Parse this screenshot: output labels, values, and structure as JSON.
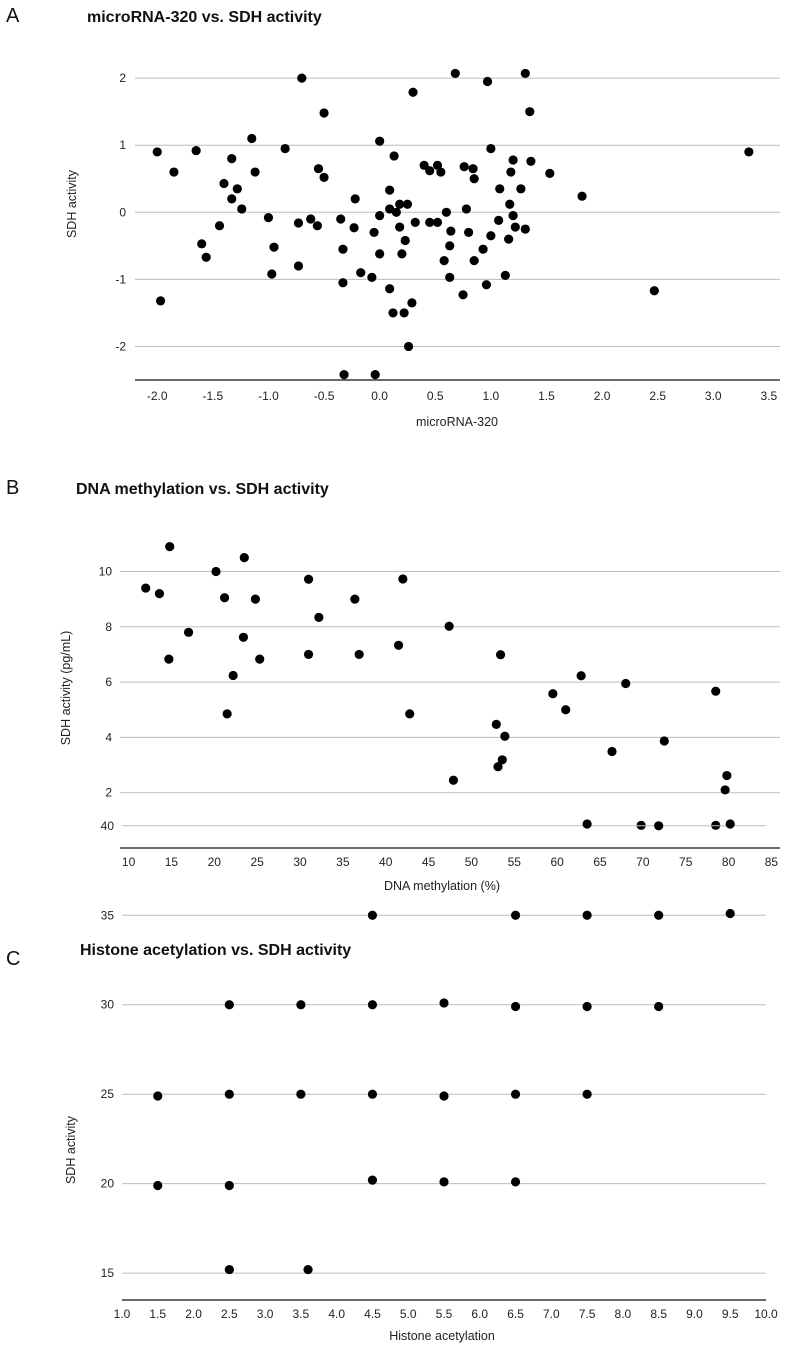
{
  "chart_data": [
    {
      "panel": "A",
      "type": "scatter",
      "title": "microRNA-320 vs. SDH activity",
      "xlabel": "microRNA-320",
      "ylabel": "SDH activity",
      "xlim": [
        -2.2,
        3.6
      ],
      "ylim": [
        -2.5,
        2.3
      ],
      "xticks": [
        "-2.0",
        "-1.5",
        "-1.0",
        "-0.5",
        "0.0",
        "0.5",
        "1.0",
        "1.5",
        "2.0",
        "2.5",
        "3.0",
        "3.5"
      ],
      "yticks": [
        "-2",
        "-1",
        "0",
        "1",
        "2"
      ],
      "grid": "horizontal",
      "points": [
        [
          -0.7,
          2.0
        ],
        [
          0.68,
          2.07
        ],
        [
          0.97,
          1.95
        ],
        [
          1.31,
          2.07
        ],
        [
          0.3,
          1.79
        ],
        [
          -0.5,
          1.48
        ],
        [
          1.35,
          1.5
        ],
        [
          -2.0,
          0.9
        ],
        [
          -1.65,
          0.92
        ],
        [
          -1.85,
          0.6
        ],
        [
          -1.33,
          0.8
        ],
        [
          -1.15,
          1.1
        ],
        [
          -1.12,
          0.6
        ],
        [
          -0.85,
          0.95
        ],
        [
          0.0,
          1.06
        ],
        [
          0.13,
          0.84
        ],
        [
          1.0,
          0.95
        ],
        [
          1.2,
          0.78
        ],
        [
          1.36,
          0.76
        ],
        [
          1.53,
          0.58
        ],
        [
          3.32,
          0.9
        ],
        [
          -0.55,
          0.65
        ],
        [
          -0.5,
          0.52
        ],
        [
          -1.4,
          0.43
        ],
        [
          -1.28,
          0.35
        ],
        [
          -1.33,
          0.2
        ],
        [
          -1.24,
          0.05
        ],
        [
          -0.22,
          0.2
        ],
        [
          0.09,
          0.33
        ],
        [
          0.09,
          0.05
        ],
        [
          0.15,
          0.0
        ],
        [
          0.18,
          0.12
        ],
        [
          0.25,
          0.12
        ],
        [
          0.4,
          0.7
        ],
        [
          0.45,
          0.62
        ],
        [
          0.52,
          0.7
        ],
        [
          0.55,
          0.6
        ],
        [
          0.76,
          0.68
        ],
        [
          0.84,
          0.65
        ],
        [
          0.85,
          0.5
        ],
        [
          1.08,
          0.35
        ],
        [
          1.18,
          0.6
        ],
        [
          1.27,
          0.35
        ],
        [
          1.82,
          0.24
        ],
        [
          1.17,
          0.12
        ],
        [
          0.78,
          0.05
        ],
        [
          -1.44,
          -0.2
        ],
        [
          -1.0,
          -0.08
        ],
        [
          -0.73,
          -0.16
        ],
        [
          -0.62,
          -0.1
        ],
        [
          -0.56,
          -0.2
        ],
        [
          -0.35,
          -0.1
        ],
        [
          -0.23,
          -0.23
        ],
        [
          -0.05,
          -0.3
        ],
        [
          0.0,
          -0.05
        ],
        [
          0.18,
          -0.22
        ],
        [
          0.32,
          -0.15
        ],
        [
          0.45,
          -0.15
        ],
        [
          0.52,
          -0.15
        ],
        [
          0.6,
          0.0
        ],
        [
          0.64,
          -0.28
        ],
        [
          0.8,
          -0.3
        ],
        [
          1.07,
          -0.12
        ],
        [
          1.16,
          -0.4
        ],
        [
          1.2,
          -0.05
        ],
        [
          1.22,
          -0.22
        ],
        [
          1.31,
          -0.25
        ],
        [
          1.0,
          -0.35
        ],
        [
          -1.6,
          -0.47
        ],
        [
          -1.56,
          -0.67
        ],
        [
          -0.95,
          -0.52
        ],
        [
          -0.97,
          -0.92
        ],
        [
          -0.73,
          -0.8
        ],
        [
          -0.33,
          -0.55
        ],
        [
          0.0,
          -0.62
        ],
        [
          0.2,
          -0.62
        ],
        [
          0.23,
          -0.42
        ],
        [
          0.58,
          -0.72
        ],
        [
          0.63,
          -0.5
        ],
        [
          0.63,
          -0.97
        ],
        [
          0.85,
          -0.72
        ],
        [
          0.93,
          -0.55
        ],
        [
          -0.33,
          -1.05
        ],
        [
          -0.17,
          -0.9
        ],
        [
          -0.07,
          -0.97
        ],
        [
          0.09,
          -1.14
        ],
        [
          0.75,
          -1.23
        ],
        [
          0.96,
          -1.08
        ],
        [
          1.13,
          -0.94
        ],
        [
          2.47,
          -1.17
        ],
        [
          -1.97,
          -1.32
        ],
        [
          0.12,
          -1.5
        ],
        [
          0.22,
          -1.5
        ],
        [
          0.29,
          -1.35
        ],
        [
          0.26,
          -2.0
        ],
        [
          -0.32,
          -2.42
        ],
        [
          -0.04,
          -2.42
        ]
      ]
    },
    {
      "panel": "B",
      "type": "scatter",
      "title": "DNA methylation vs. SDH activity",
      "xlabel": "DNA methylation (%)",
      "ylabel": "SDH activity (pg/mL)",
      "xlim": [
        9,
        86
      ],
      "ylim": [
        0,
        11.5
      ],
      "xticks": [
        "10",
        "15",
        "20",
        "25",
        "30",
        "35",
        "40",
        "45",
        "50",
        "55",
        "60",
        "65",
        "70",
        "75",
        "80",
        "85"
      ],
      "yticks": [
        "2",
        "4",
        "6",
        "8",
        "10"
      ],
      "grid": "horizontal",
      "points": [
        [
          14.8,
          10.9
        ],
        [
          23.5,
          10.5
        ],
        [
          20.2,
          10.0
        ],
        [
          31.0,
          9.72
        ],
        [
          42.0,
          9.73
        ],
        [
          12.0,
          9.4
        ],
        [
          13.6,
          9.2
        ],
        [
          21.2,
          9.05
        ],
        [
          24.8,
          9.0
        ],
        [
          36.4,
          9.0
        ],
        [
          32.2,
          8.34
        ],
        [
          47.4,
          8.02
        ],
        [
          17.0,
          7.8
        ],
        [
          23.4,
          7.62
        ],
        [
          41.5,
          7.33
        ],
        [
          14.7,
          6.83
        ],
        [
          25.3,
          6.83
        ],
        [
          31.0,
          7.0
        ],
        [
          36.9,
          7.0
        ],
        [
          53.4,
          6.99
        ],
        [
          22.2,
          6.24
        ],
        [
          62.8,
          6.23
        ],
        [
          68.0,
          5.95
        ],
        [
          59.5,
          5.58
        ],
        [
          78.5,
          5.67
        ],
        [
          61.0,
          5.0
        ],
        [
          21.5,
          4.85
        ],
        [
          42.8,
          4.85
        ],
        [
          52.9,
          4.47
        ],
        [
          53.9,
          4.04
        ],
        [
          72.5,
          3.87
        ],
        [
          66.4,
          3.49
        ],
        [
          53.6,
          3.19
        ],
        [
          53.1,
          2.94
        ],
        [
          47.9,
          2.45
        ],
        [
          79.8,
          2.62
        ],
        [
          79.6,
          2.1
        ],
        [
          69.8,
          0.82
        ],
        [
          78.5,
          0.82
        ]
      ]
    },
    {
      "panel": "C",
      "type": "scatter",
      "title": "Histone acetylation vs. SDH activity",
      "xlabel": "Histone acetylation",
      "ylabel": "SDH activity",
      "xlim": [
        1.0,
        10.0
      ],
      "ylim": [
        13.5,
        42
      ],
      "xticks": [
        "1.0",
        "1.5",
        "2.0",
        "2.5",
        "3.0",
        "3.5",
        "4.0",
        "4.5",
        "5.0",
        "5.5",
        "6.0",
        "6.5",
        "7.0",
        "7.5",
        "8.0",
        "8.5",
        "9.0",
        "9.5",
        "10.0"
      ],
      "yticks": [
        "15",
        "20",
        "25",
        "30",
        "35",
        "40"
      ],
      "grid": "horizontal",
      "points": [
        [
          7.5,
          40.1
        ],
        [
          8.5,
          40.0
        ],
        [
          9.5,
          40.1
        ],
        [
          4.5,
          35.0
        ],
        [
          6.5,
          35.0
        ],
        [
          7.5,
          35.0
        ],
        [
          8.5,
          35.0
        ],
        [
          9.5,
          35.1
        ],
        [
          2.5,
          30.0
        ],
        [
          3.5,
          30.0
        ],
        [
          4.5,
          30.0
        ],
        [
          5.5,
          30.1
        ],
        [
          6.5,
          29.9
        ],
        [
          7.5,
          29.9
        ],
        [
          8.5,
          29.9
        ],
        [
          1.5,
          24.9
        ],
        [
          2.5,
          25.0
        ],
        [
          3.5,
          25.0
        ],
        [
          4.5,
          25.0
        ],
        [
          5.5,
          24.9
        ],
        [
          6.5,
          25.0
        ],
        [
          7.5,
          25.0
        ],
        [
          1.5,
          19.9
        ],
        [
          2.5,
          19.9
        ],
        [
          4.5,
          20.2
        ],
        [
          5.5,
          20.1
        ],
        [
          6.5,
          20.1
        ],
        [
          2.5,
          15.2
        ],
        [
          3.6,
          15.2
        ]
      ]
    }
  ]
}
